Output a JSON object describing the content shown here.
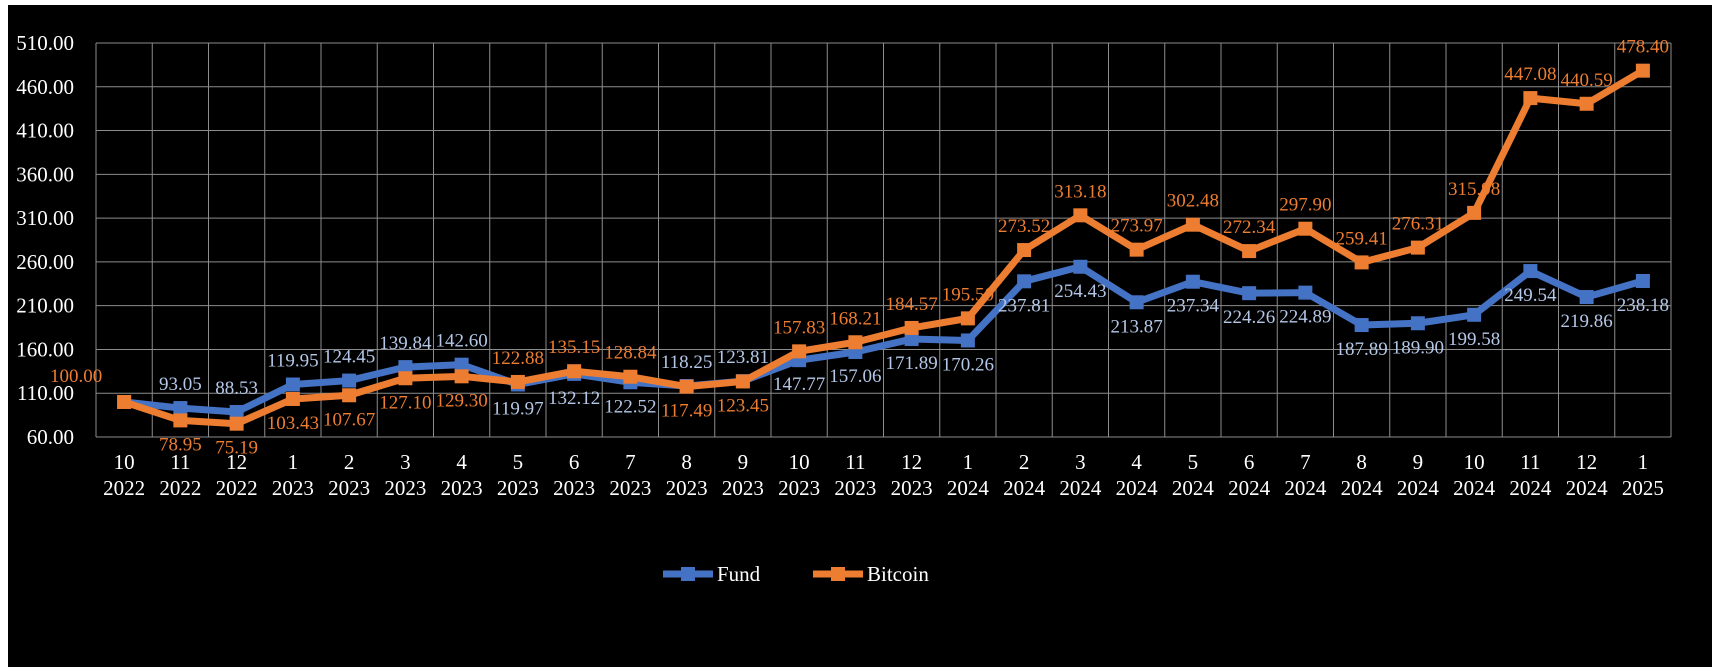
{
  "chart_data": {
    "type": "line",
    "title": "",
    "xlabel": "",
    "ylabel": "",
    "categories": [
      {
        "month": "10",
        "year": "2022"
      },
      {
        "month": "11",
        "year": "2022"
      },
      {
        "month": "12",
        "year": "2022"
      },
      {
        "month": "1",
        "year": "2023"
      },
      {
        "month": "2",
        "year": "2023"
      },
      {
        "month": "3",
        "year": "2023"
      },
      {
        "month": "4",
        "year": "2023"
      },
      {
        "month": "5",
        "year": "2023"
      },
      {
        "month": "6",
        "year": "2023"
      },
      {
        "month": "7",
        "year": "2023"
      },
      {
        "month": "8",
        "year": "2023"
      },
      {
        "month": "9",
        "year": "2023"
      },
      {
        "month": "10",
        "year": "2023"
      },
      {
        "month": "11",
        "year": "2023"
      },
      {
        "month": "12",
        "year": "2023"
      },
      {
        "month": "1",
        "year": "2024"
      },
      {
        "month": "2",
        "year": "2024"
      },
      {
        "month": "3",
        "year": "2024"
      },
      {
        "month": "4",
        "year": "2024"
      },
      {
        "month": "5",
        "year": "2024"
      },
      {
        "month": "6",
        "year": "2024"
      },
      {
        "month": "7",
        "year": "2024"
      },
      {
        "month": "8",
        "year": "2024"
      },
      {
        "month": "9",
        "year": "2024"
      },
      {
        "month": "10",
        "year": "2024"
      },
      {
        "month": "11",
        "year": "2024"
      },
      {
        "month": "12",
        "year": "2024"
      },
      {
        "month": "1",
        "year": "2025"
      }
    ],
    "ylim": [
      60,
      510
    ],
    "yticks": [
      "60.00",
      "110.00",
      "160.00",
      "210.00",
      "260.00",
      "310.00",
      "360.00",
      "410.00",
      "460.00",
      "510.00"
    ],
    "grid": true,
    "legend_position": "bottom",
    "series": [
      {
        "name": "Fund",
        "color": "#4472c4",
        "label_color": "#b4c7e7",
        "values": [
          100.0,
          93.05,
          88.53,
          119.95,
          124.45,
          139.84,
          142.6,
          119.97,
          132.12,
          122.52,
          118.25,
          123.81,
          147.77,
          157.06,
          171.89,
          170.26,
          237.81,
          254.43,
          213.87,
          237.34,
          224.26,
          224.89,
          187.89,
          189.9,
          199.58,
          249.54,
          219.86,
          238.18
        ],
        "labels": [
          "",
          "93.05",
          "88.53",
          "119.95",
          "124.45",
          "139.84",
          "142.60",
          "119.97",
          "132.12",
          "122.52",
          "118.25",
          "123.81",
          "147.77",
          "157.06",
          "171.89",
          "170.26",
          "237.81",
          "254.43",
          "213.87",
          "237.34",
          "224.26",
          "224.89",
          "187.89",
          "189.90",
          "199.58",
          "249.54",
          "219.86",
          "238.18"
        ]
      },
      {
        "name": "Bitcoin",
        "color": "#ed7d31",
        "label_color": "#ed7d31",
        "values": [
          100.0,
          78.95,
          75.19,
          103.43,
          107.67,
          127.1,
          129.3,
          122.88,
          135.15,
          128.84,
          117.49,
          123.45,
          157.83,
          168.21,
          184.57,
          195.5,
          273.52,
          313.18,
          273.97,
          302.48,
          272.34,
          297.9,
          259.41,
          276.31,
          315.98,
          447.08,
          440.59,
          478.4
        ],
        "labels": [
          "100.00",
          "78.95",
          "75.19",
          "103.43",
          "107.67",
          "127.10",
          "129.30",
          "122.88",
          "135.15",
          "128.84",
          "117.49",
          "123.45",
          "157.83",
          "168.21",
          "184.57",
          "195.50",
          "273.52",
          "313.18",
          "273.97",
          "302.48",
          "272.34",
          "297.90",
          "259.41",
          "276.31",
          "315.98",
          "447.08",
          "440.59",
          "478.40"
        ]
      }
    ]
  }
}
